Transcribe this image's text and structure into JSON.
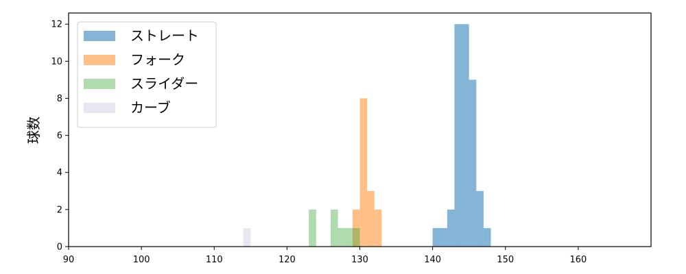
{
  "chart_data": {
    "type": "histogram",
    "title": "",
    "xlabel": "",
    "ylabel": "球数",
    "xlim": [
      90,
      170
    ],
    "ylim": [
      0,
      12.6
    ],
    "x_ticks": [
      90,
      100,
      110,
      120,
      130,
      140,
      150,
      160
    ],
    "y_ticks": [
      0,
      2,
      4,
      6,
      8,
      10,
      12
    ],
    "grid": false,
    "legend_position": "top-left",
    "series": [
      {
        "name": "ストレート",
        "color": "#1f77b4",
        "opacity": 0.55,
        "bins": [
          {
            "x0": 140,
            "x1": 141,
            "count": 1
          },
          {
            "x0": 141,
            "x1": 142,
            "count": 1
          },
          {
            "x0": 142,
            "x1": 143,
            "count": 2
          },
          {
            "x0": 143,
            "x1": 144,
            "count": 12
          },
          {
            "x0": 144,
            "x1": 145,
            "count": 12
          },
          {
            "x0": 145,
            "x1": 146,
            "count": 9
          },
          {
            "x0": 146,
            "x1": 147,
            "count": 3
          },
          {
            "x0": 147,
            "x1": 148,
            "count": 1
          }
        ]
      },
      {
        "name": "フォーク",
        "color": "#ff7f0e",
        "opacity": 0.5,
        "bins": [
          {
            "x0": 129,
            "x1": 130,
            "count": 2
          },
          {
            "x0": 130,
            "x1": 131,
            "count": 8
          },
          {
            "x0": 131,
            "x1": 132,
            "count": 3
          },
          {
            "x0": 132,
            "x1": 133,
            "count": 2
          }
        ]
      },
      {
        "name": "スライダー",
        "color": "#2ca02c",
        "opacity": 0.38,
        "bins": [
          {
            "x0": 123,
            "x1": 124,
            "count": 2
          },
          {
            "x0": 126,
            "x1": 127,
            "count": 2
          },
          {
            "x0": 127,
            "x1": 128,
            "count": 1
          },
          {
            "x0": 128,
            "x1": 129,
            "count": 1
          },
          {
            "x0": 129,
            "x1": 130,
            "count": 1
          }
        ]
      },
      {
        "name": "カーブ",
        "color": "#c9c9e3",
        "opacity": 0.45,
        "bins": [
          {
            "x0": 114,
            "x1": 115,
            "count": 1
          }
        ]
      }
    ]
  }
}
